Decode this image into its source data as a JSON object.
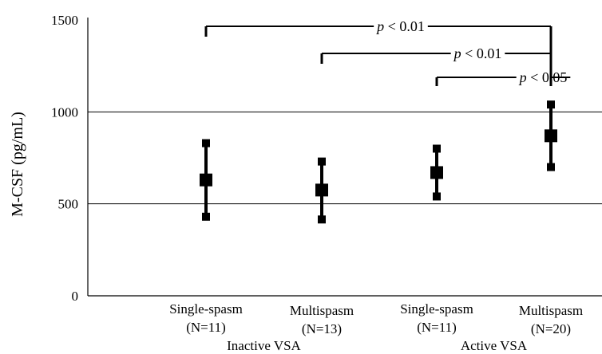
{
  "chart_data": {
    "type": "scatter",
    "ylabel": "M-CSF (pg/mL)",
    "xlabel": "",
    "ylim": [
      0,
      1500
    ],
    "yticks": [
      0,
      500,
      1000,
      1500
    ],
    "grid_lines": [
      500,
      1000
    ],
    "categories": [
      {
        "line1": "Single-spasm",
        "line2": "(N=11)"
      },
      {
        "line1": "Multispasm",
        "line2": "(N=13)"
      },
      {
        "line1": "Single-spasm",
        "line2": "(N=11)"
      },
      {
        "line1": "Multispasm",
        "line2": "(N=20)"
      }
    ],
    "groups": [
      {
        "label": "Inactive VSA",
        "categories": [
          0,
          1
        ]
      },
      {
        "label": "Active VSA",
        "categories": [
          2,
          3
        ]
      }
    ],
    "series": [
      {
        "mean": [
          630,
          575,
          670,
          870
        ],
        "upper": [
          830,
          730,
          800,
          1040
        ],
        "lower": [
          430,
          415,
          540,
          700
        ]
      }
    ],
    "significance": [
      {
        "from": 0,
        "to": 3,
        "label_p": "p",
        "label_rest": " < 0.01"
      },
      {
        "from": 1,
        "to": 3,
        "label_p": "p",
        "label_rest": " < 0.01"
      },
      {
        "from": 2,
        "to": 3,
        "label_p": "p",
        "label_rest": " < 0.05"
      }
    ]
  }
}
